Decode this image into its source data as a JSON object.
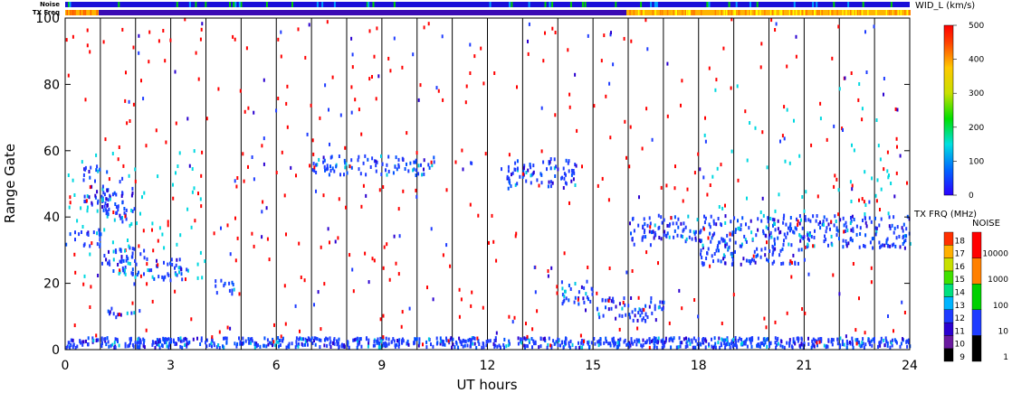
{
  "chart_data": {
    "type": "scatter",
    "title": "",
    "xlabel": "UT hours",
    "ylabel": "Range Gate",
    "xlim": [
      0,
      24
    ],
    "ylim": [
      0,
      100
    ],
    "x_ticks": [
      0,
      3,
      6,
      9,
      12,
      15,
      18,
      21,
      24
    ],
    "y_ticks": [
      0,
      20,
      40,
      60,
      80,
      100
    ],
    "status_bars": {
      "noise_label": "Noise",
      "txfreq_label": "TX Freq"
    },
    "colorbars": {
      "width": {
        "title": "WID_L (km/s)",
        "ticks": [
          0,
          100,
          200,
          300,
          400,
          500
        ],
        "range": [
          0,
          500
        ]
      },
      "txfreq": {
        "title": "TX FRQ (MHz)",
        "ticks": [
          9,
          10,
          11,
          12,
          13,
          14,
          15,
          16,
          17,
          18
        ]
      },
      "noise": {
        "title": "NOISE",
        "ticks": [
          1,
          10,
          100,
          1000,
          10000
        ]
      }
    },
    "series": [
      {
        "color": "#1e3cff",
        "blobs": [
          {
            "x": [
              0.0,
              24.0
            ],
            "y": [
              0,
              3
            ]
          },
          {
            "x": [
              0.0,
              1.0
            ],
            "y": [
              30,
              35
            ]
          },
          {
            "x": [
              1.0,
              2.4
            ],
            "y": [
              22,
              30
            ]
          },
          {
            "x": [
              2.4,
              3.5
            ],
            "y": [
              20,
              27
            ]
          },
          {
            "x": [
              0.5,
              1.2
            ],
            "y": [
              42,
              55
            ]
          },
          {
            "x": [
              1.0,
              2.0
            ],
            "y": [
              38,
              48
            ]
          },
          {
            "x": [
              1.2,
              2.0
            ],
            "y": [
              9,
              12
            ]
          },
          {
            "x": [
              4.2,
              4.8
            ],
            "y": [
              16,
              21
            ]
          },
          {
            "x": [
              14.0,
              15.0
            ],
            "y": [
              13,
              20
            ]
          },
          {
            "x": [
              15.0,
              17.0
            ],
            "y": [
              8,
              15
            ]
          },
          {
            "x": [
              16.0,
              18.0
            ],
            "y": [
              32,
              40
            ]
          },
          {
            "x": [
              18.0,
              21.0
            ],
            "y": [
              25,
              40
            ]
          },
          {
            "x": [
              21.0,
              24.0
            ],
            "y": [
              30,
              40
            ]
          },
          {
            "x": [
              7.0,
              10.5
            ],
            "y": [
              52,
              58
            ]
          },
          {
            "x": [
              12.5,
              14.5
            ],
            "y": [
              48,
              57
            ]
          }
        ]
      },
      {
        "color": "#ff0000",
        "blobs": [
          {
            "x": [
              0.0,
              24.0
            ],
            "y": [
              0,
              100
            ]
          }
        ]
      },
      {
        "color": "#00d8e0",
        "blobs": [
          {
            "x": [
              0.0,
              4.0
            ],
            "y": [
              20,
              60
            ]
          },
          {
            "x": [
              18.0,
              23.5
            ],
            "y": [
              30,
              80
            ]
          }
        ]
      }
    ]
  }
}
